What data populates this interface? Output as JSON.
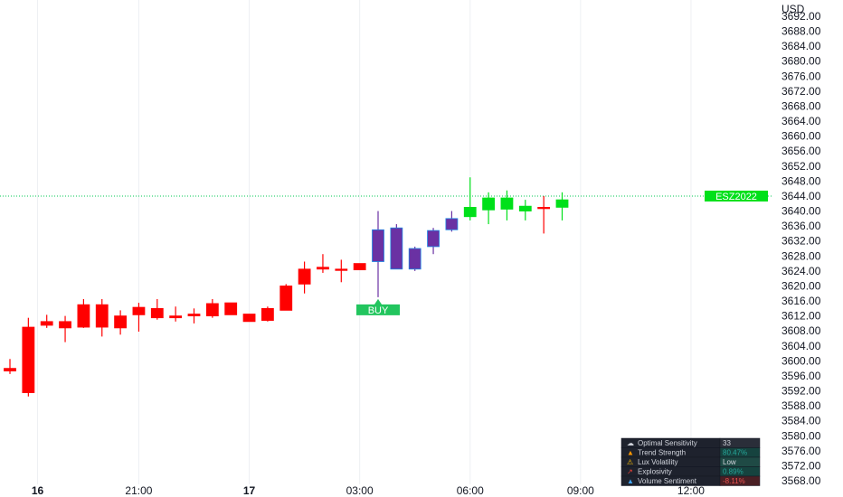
{
  "chart_data": {
    "type": "candlestick",
    "currency_label": "USD",
    "y_ticks": [
      "3692.00",
      "3688.00",
      "3684.00",
      "3680.00",
      "3676.00",
      "3672.00",
      "3668.00",
      "3664.00",
      "3660.00",
      "3656.00",
      "3652.00",
      "3648.00",
      "3644.00",
      "3640.00",
      "3636.00",
      "3632.00",
      "3628.00",
      "3624.00",
      "3620.00",
      "3616.00",
      "3612.00",
      "3608.00",
      "3604.00",
      "3600.00",
      "3596.00",
      "3592.00",
      "3588.00",
      "3584.00",
      "3580.00",
      "3576.00",
      "3572.00",
      "3568.00"
    ],
    "ylim": [
      3566,
      3694
    ],
    "x_labels": [
      {
        "text": "16",
        "bold": true,
        "after_candle": 1.5
      },
      {
        "text": "21:00",
        "bold": false,
        "after_candle": 7
      },
      {
        "text": "17",
        "bold": true,
        "after_candle": 13
      },
      {
        "text": "03:00",
        "bold": false,
        "after_candle": 19
      },
      {
        "text": "06:00",
        "bold": false,
        "after_candle": 25
      },
      {
        "text": "09:00",
        "bold": false,
        "after_candle": 31
      },
      {
        "text": "12:00",
        "bold": false,
        "after_candle": 37
      }
    ],
    "candles": [
      {
        "o": 3598.0,
        "h": 3600.5,
        "l": 3596.5,
        "c": 3597.3,
        "color": "red"
      },
      {
        "o": 3609.0,
        "h": 3611.5,
        "l": 3590.5,
        "c": 3591.5,
        "color": "red"
      },
      {
        "o": 3609.5,
        "h": 3612.3,
        "l": 3608.8,
        "c": 3610.5,
        "color": "red"
      },
      {
        "o": 3610.5,
        "h": 3612.0,
        "l": 3605.0,
        "c": 3608.8,
        "color": "red"
      },
      {
        "o": 3615.0,
        "h": 3616.5,
        "l": 3608.8,
        "c": 3609.0,
        "color": "red"
      },
      {
        "o": 3609.0,
        "h": 3616.5,
        "l": 3606.5,
        "c": 3615.0,
        "color": "red"
      },
      {
        "o": 3612.0,
        "h": 3613.5,
        "l": 3607.0,
        "c": 3608.8,
        "color": "red"
      },
      {
        "o": 3612.3,
        "h": 3615.5,
        "l": 3607.8,
        "c": 3614.3,
        "color": "red"
      },
      {
        "o": 3614.0,
        "h": 3616.5,
        "l": 3611.0,
        "c": 3611.5,
        "color": "red"
      },
      {
        "o": 3612.0,
        "h": 3614.5,
        "l": 3610.5,
        "c": 3611.5,
        "color": "red"
      },
      {
        "o": 3612.0,
        "h": 3614.0,
        "l": 3610.0,
        "c": 3612.5,
        "color": "red"
      },
      {
        "o": 3615.3,
        "h": 3616.5,
        "l": 3611.5,
        "c": 3612.0,
        "color": "red"
      },
      {
        "o": 3615.5,
        "h": 3615.5,
        "l": 3612.3,
        "c": 3612.3,
        "color": "red"
      },
      {
        "o": 3612.5,
        "h": 3612.5,
        "l": 3610.5,
        "c": 3610.5,
        "color": "red"
      },
      {
        "o": 3614.0,
        "h": 3614.5,
        "l": 3610.5,
        "c": 3610.8,
        "color": "red"
      },
      {
        "o": 3620.0,
        "h": 3620.5,
        "l": 3613.5,
        "c": 3613.5,
        "color": "red"
      },
      {
        "o": 3624.5,
        "h": 3626.5,
        "l": 3618.0,
        "c": 3620.5,
        "color": "red"
      },
      {
        "o": 3625.0,
        "h": 3628.5,
        "l": 3623.5,
        "c": 3624.5,
        "color": "red"
      },
      {
        "o": 3624.5,
        "h": 3627.0,
        "l": 3621.0,
        "c": 3624.5,
        "color": "red"
      },
      {
        "o": 3626.0,
        "h": 3626.0,
        "l": 3624.3,
        "c": 3624.3,
        "color": "red"
      },
      {
        "o": 3626.5,
        "h": 3640.0,
        "l": 3617.0,
        "c": 3635.0,
        "color": "purple"
      },
      {
        "o": 3635.5,
        "h": 3636.5,
        "l": 3624.5,
        "c": 3624.5,
        "color": "purple"
      },
      {
        "o": 3624.5,
        "h": 3630.5,
        "l": 3624.0,
        "c": 3630.0,
        "color": "purple"
      },
      {
        "o": 3630.5,
        "h": 3635.5,
        "l": 3628.5,
        "c": 3634.8,
        "color": "purple"
      },
      {
        "o": 3635.0,
        "h": 3640.0,
        "l": 3634.5,
        "c": 3638.0,
        "color": "purple"
      },
      {
        "o": 3638.5,
        "h": 3649.0,
        "l": 3637.5,
        "c": 3641.0,
        "color": "green"
      },
      {
        "o": 3640.3,
        "h": 3645.0,
        "l": 3636.5,
        "c": 3643.5,
        "color": "green"
      },
      {
        "o": 3640.5,
        "h": 3645.5,
        "l": 3637.5,
        "c": 3643.5,
        "color": "green"
      },
      {
        "o": 3640.0,
        "h": 3643.0,
        "l": 3637.5,
        "c": 3641.3,
        "color": "green"
      },
      {
        "o": 3641.0,
        "h": 3644.0,
        "l": 3634.0,
        "c": 3641.0,
        "color": "red"
      },
      {
        "o": 3641.0,
        "h": 3645.0,
        "l": 3637.5,
        "c": 3643.0,
        "color": "green"
      }
    ],
    "last_price": 3644.0,
    "symbol_tag": "ESZ2022",
    "signal": {
      "label": "BUY",
      "candle": 20
    },
    "grid": true
  },
  "colors": {
    "red": "#ff0000",
    "green": "#00e01a",
    "purple": "#6a31a3",
    "buy": "#22c55e",
    "last_price_line": "#00c853",
    "grid": "#eef0f3"
  },
  "indicator_panel": {
    "rows": [
      {
        "icon": "cloud-icon",
        "label": "Optimal Sensitivity",
        "value": "33",
        "value_color": "#d1d4dc",
        "bg": "#2a2e39"
      },
      {
        "icon": "flame-icon",
        "label": "Trend Strength",
        "value": "80.47%",
        "value_color": "#26a69a",
        "bg": "#16433f"
      },
      {
        "icon": "warning-icon",
        "label": "Lux Volatility",
        "value": "Low",
        "value_color": "#d1d4dc",
        "bg": "#1f4a45"
      },
      {
        "icon": "rocket-icon",
        "label": "Explosivity",
        "value": "0.89%",
        "value_color": "#26a69a",
        "bg": "#16433f"
      },
      {
        "icon": "droplet-icon",
        "label": "Volume Sentiment",
        "value": "-8.11%",
        "value_color": "#ef5350",
        "bg": "#4a1f24"
      }
    ]
  }
}
